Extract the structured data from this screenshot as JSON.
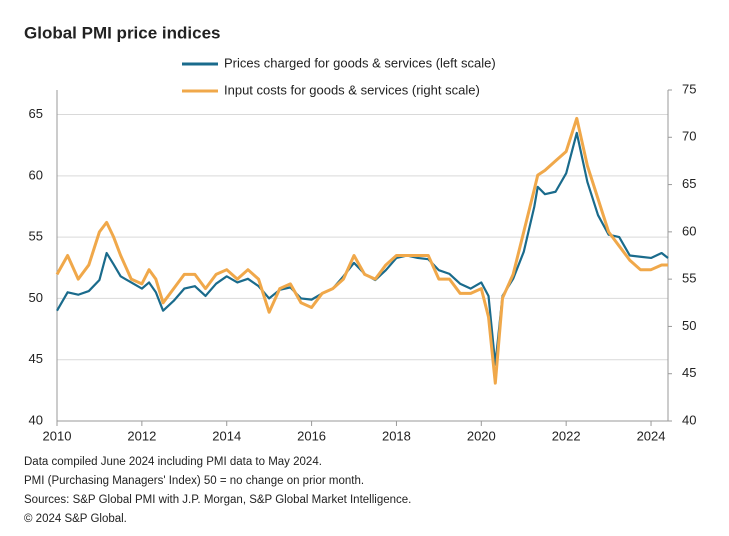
{
  "chart_data": {
    "type": "line",
    "title": "Global PMI price indices",
    "notes": [
      "Data compiled June 2024 including PMI data to May 2024.",
      "PMI (Purchasing Managers' Index) 50 = no change on prior month.",
      "Sources: S&P Global PMI with J.P. Morgan, S&P Global Market Intelligence.",
      "© 2024 S&P Global."
    ],
    "x": [
      2010.0,
      2010.25,
      2010.5,
      2010.75,
      2011.0,
      2011.17,
      2011.33,
      2011.5,
      2011.75,
      2012.0,
      2012.17,
      2012.33,
      2012.5,
      2012.75,
      2013.0,
      2013.25,
      2013.5,
      2013.75,
      2014.0,
      2014.25,
      2014.5,
      2014.75,
      2015.0,
      2015.25,
      2015.5,
      2015.75,
      2016.0,
      2016.25,
      2016.5,
      2016.75,
      2017.0,
      2017.25,
      2017.5,
      2017.75,
      2018.0,
      2018.25,
      2018.5,
      2018.75,
      2019.0,
      2019.25,
      2019.5,
      2019.75,
      2020.0,
      2020.17,
      2020.33,
      2020.5,
      2020.75,
      2021.0,
      2021.25,
      2021.33,
      2021.5,
      2021.75,
      2022.0,
      2022.25,
      2022.5,
      2022.75,
      2023.0,
      2023.25,
      2023.5,
      2023.75,
      2024.0,
      2024.25,
      2024.4
    ],
    "series": [
      {
        "name": "Prices charged for goods & services (left scale)",
        "color": "#1a6b8c",
        "values": [
          49,
          50.5,
          50.3,
          50.6,
          51.5,
          53.7,
          52.8,
          51.8,
          51.3,
          50.8,
          51.3,
          50.5,
          49,
          49.8,
          50.8,
          51,
          50.2,
          51.2,
          51.8,
          51.3,
          51.6,
          51,
          50,
          50.7,
          50.9,
          50,
          49.9,
          50.4,
          50.8,
          51.8,
          52.9,
          52,
          51.5,
          52.3,
          53.3,
          53.5,
          53.3,
          53.2,
          52.3,
          52,
          51.2,
          50.8,
          51.3,
          50.2,
          44.6,
          50.2,
          51.6,
          53.8,
          57.5,
          59.1,
          58.5,
          58.7,
          60.2,
          63.5,
          59.5,
          56.8,
          55.2,
          55,
          53.5,
          53.4,
          53.3,
          53.7,
          53.3
        ]
      },
      {
        "name": "Input costs for goods & services (right scale)",
        "color": "#f0a84a",
        "axis": "y2",
        "values": [
          55.5,
          57.5,
          55,
          56.5,
          60,
          61,
          59.5,
          57.5,
          55,
          54.5,
          56,
          55,
          52.5,
          54,
          55.5,
          55.5,
          54,
          55.5,
          56,
          55,
          56,
          55,
          51.5,
          54,
          54.5,
          52.5,
          52,
          53.5,
          54,
          55,
          57.5,
          55.5,
          55,
          56.5,
          57.5,
          57.5,
          57.5,
          57.5,
          55,
          55,
          53.5,
          53.5,
          54,
          51,
          44,
          53,
          55.5,
          60,
          64.5,
          66,
          66.5,
          67.5,
          68.5,
          72,
          67,
          63.5,
          60,
          58.5,
          57,
          56,
          56,
          56.5,
          56.5
        ]
      }
    ],
    "xlim": [
      2010,
      2024.4
    ],
    "xticks": [
      2010,
      2012,
      2014,
      2016,
      2018,
      2020,
      2022,
      2024
    ],
    "ylim": [
      40,
      67
    ],
    "yticks": [
      40,
      45,
      50,
      55,
      60,
      65
    ],
    "y2lim": [
      40,
      75
    ],
    "y2ticks": [
      40,
      45,
      50,
      55,
      60,
      65,
      70,
      75
    ],
    "grid": true
  }
}
